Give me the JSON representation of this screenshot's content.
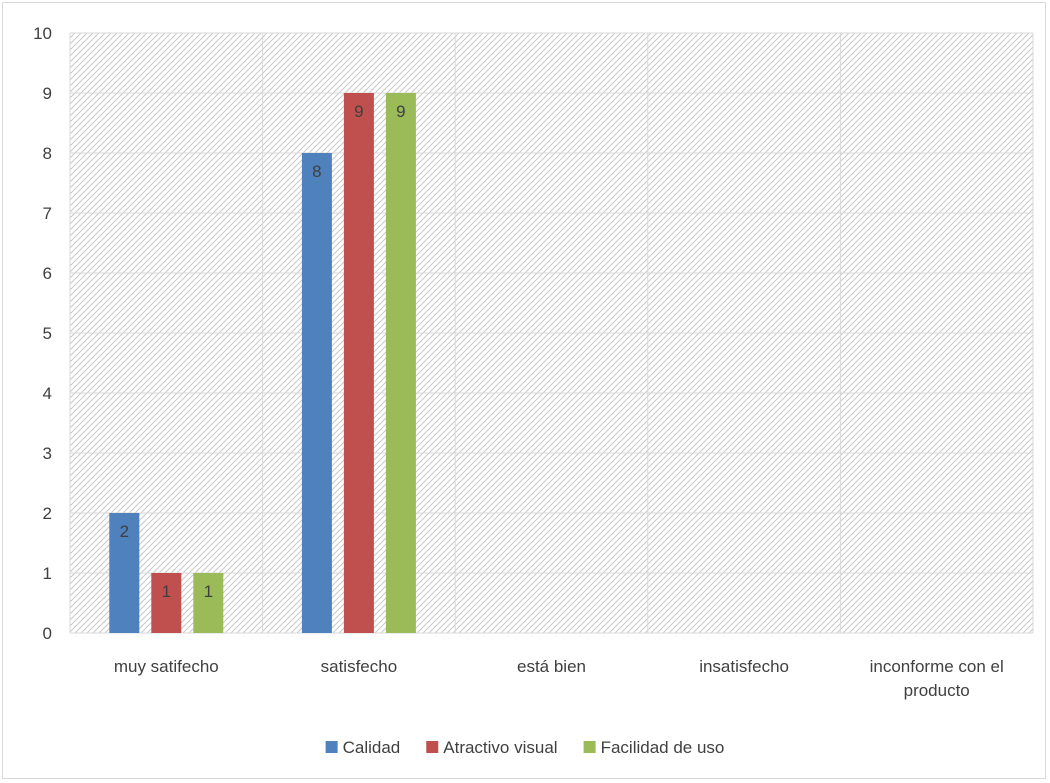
{
  "chart_data": {
    "type": "bar",
    "title": "",
    "xlabel": "",
    "ylabel": "",
    "ylim": [
      0,
      10
    ],
    "yticks": [
      0,
      1,
      2,
      3,
      4,
      5,
      6,
      7,
      8,
      9,
      10
    ],
    "grid": true,
    "legend_position": "bottom",
    "categories": [
      [
        "muy satifecho"
      ],
      [
        "satisfecho"
      ],
      [
        "está bien"
      ],
      [
        "insatisfecho"
      ],
      [
        "inconforme con el",
        "producto"
      ]
    ],
    "series": [
      {
        "name": "Calidad",
        "color": "#4f81bd",
        "values": [
          2,
          8,
          null,
          null,
          null
        ]
      },
      {
        "name": "Atractivo visual",
        "color": "#c0504d",
        "values": [
          1,
          9,
          null,
          null,
          null
        ]
      },
      {
        "name": "Facilidad de uso",
        "color": "#9bbb59",
        "values": [
          1,
          9,
          null,
          null,
          null
        ]
      }
    ]
  }
}
